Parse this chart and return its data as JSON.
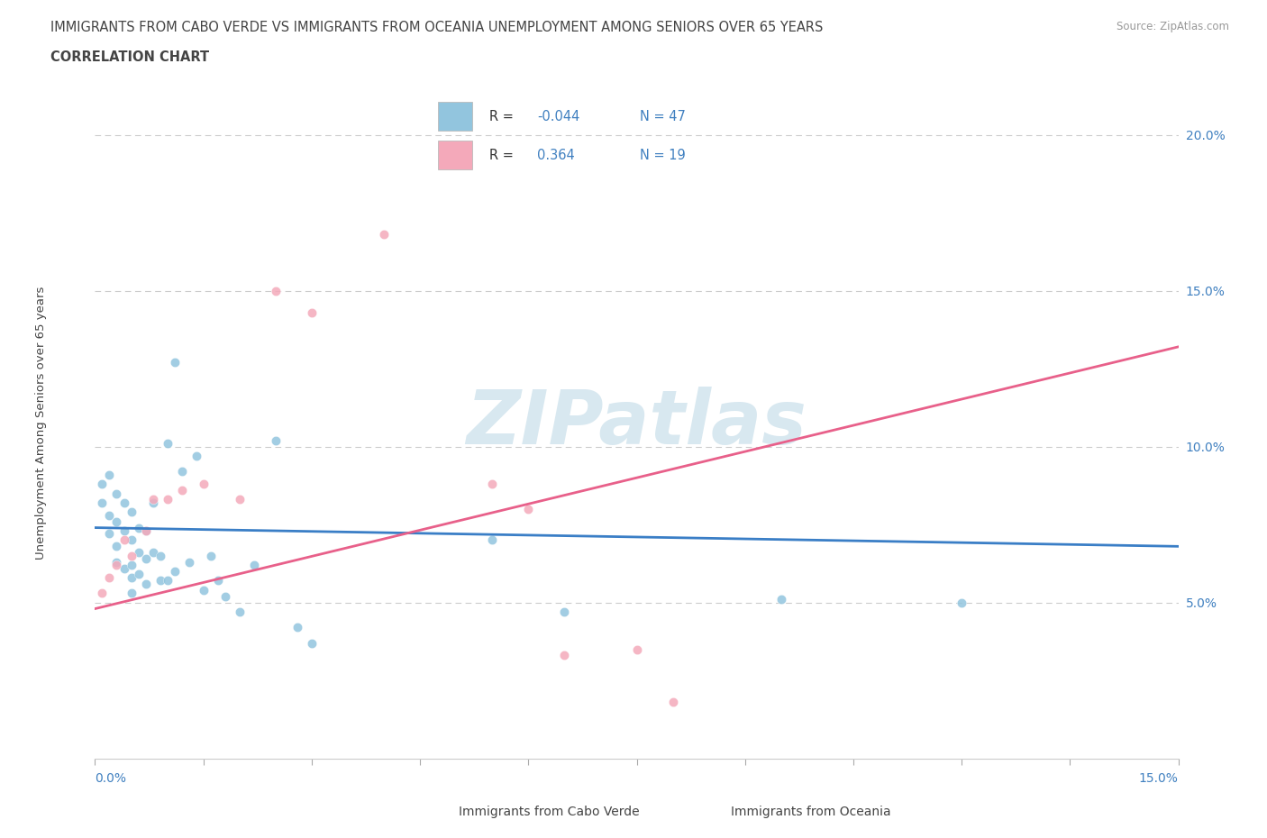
{
  "title_line1": "IMMIGRANTS FROM CABO VERDE VS IMMIGRANTS FROM OCEANIA UNEMPLOYMENT AMONG SENIORS OVER 65 YEARS",
  "title_line2": "CORRELATION CHART",
  "source": "Source: ZipAtlas.com",
  "ylabel": "Unemployment Among Seniors over 65 years",
  "y_tick_labels": [
    "5.0%",
    "10.0%",
    "15.0%",
    "20.0%"
  ],
  "y_tick_values": [
    0.05,
    0.1,
    0.15,
    0.2
  ],
  "xmin": 0.0,
  "xmax": 0.15,
  "ymin": 0.0,
  "ymax": 0.215,
  "r_cabo": -0.044,
  "n_cabo": 47,
  "r_oceania": 0.364,
  "n_oceania": 19,
  "color_cabo": "#92C5DE",
  "color_oceania": "#F4A9BA",
  "color_cabo_line": "#3A7EC6",
  "color_oceania_line": "#E8608A",
  "cabo_x": [
    0.001,
    0.001,
    0.002,
    0.002,
    0.002,
    0.003,
    0.003,
    0.003,
    0.003,
    0.004,
    0.004,
    0.004,
    0.005,
    0.005,
    0.005,
    0.005,
    0.005,
    0.006,
    0.006,
    0.006,
    0.007,
    0.007,
    0.007,
    0.008,
    0.008,
    0.009,
    0.009,
    0.01,
    0.01,
    0.011,
    0.011,
    0.012,
    0.013,
    0.014,
    0.015,
    0.016,
    0.017,
    0.018,
    0.02,
    0.022,
    0.025,
    0.028,
    0.03,
    0.055,
    0.065,
    0.095,
    0.12
  ],
  "cabo_y": [
    0.088,
    0.082,
    0.091,
    0.078,
    0.072,
    0.085,
    0.076,
    0.068,
    0.063,
    0.082,
    0.073,
    0.061,
    0.079,
    0.07,
    0.062,
    0.058,
    0.053,
    0.074,
    0.066,
    0.059,
    0.073,
    0.064,
    0.056,
    0.082,
    0.066,
    0.065,
    0.057,
    0.101,
    0.057,
    0.127,
    0.06,
    0.092,
    0.063,
    0.097,
    0.054,
    0.065,
    0.057,
    0.052,
    0.047,
    0.062,
    0.102,
    0.042,
    0.037,
    0.07,
    0.047,
    0.051,
    0.05
  ],
  "oceania_x": [
    0.001,
    0.002,
    0.003,
    0.004,
    0.005,
    0.007,
    0.008,
    0.01,
    0.012,
    0.015,
    0.02,
    0.025,
    0.03,
    0.04,
    0.055,
    0.06,
    0.065,
    0.075,
    0.08
  ],
  "oceania_y": [
    0.053,
    0.058,
    0.062,
    0.07,
    0.065,
    0.073,
    0.083,
    0.083,
    0.086,
    0.088,
    0.083,
    0.15,
    0.143,
    0.168,
    0.088,
    0.08,
    0.033,
    0.035,
    0.018
  ],
  "cabo_trend_x0": 0.0,
  "cabo_trend_y0": 0.074,
  "cabo_trend_x1": 0.15,
  "cabo_trend_y1": 0.068,
  "oceania_trend_x0": 0.0,
  "oceania_trend_y0": 0.048,
  "oceania_trend_x1": 0.15,
  "oceania_trend_y1": 0.132
}
